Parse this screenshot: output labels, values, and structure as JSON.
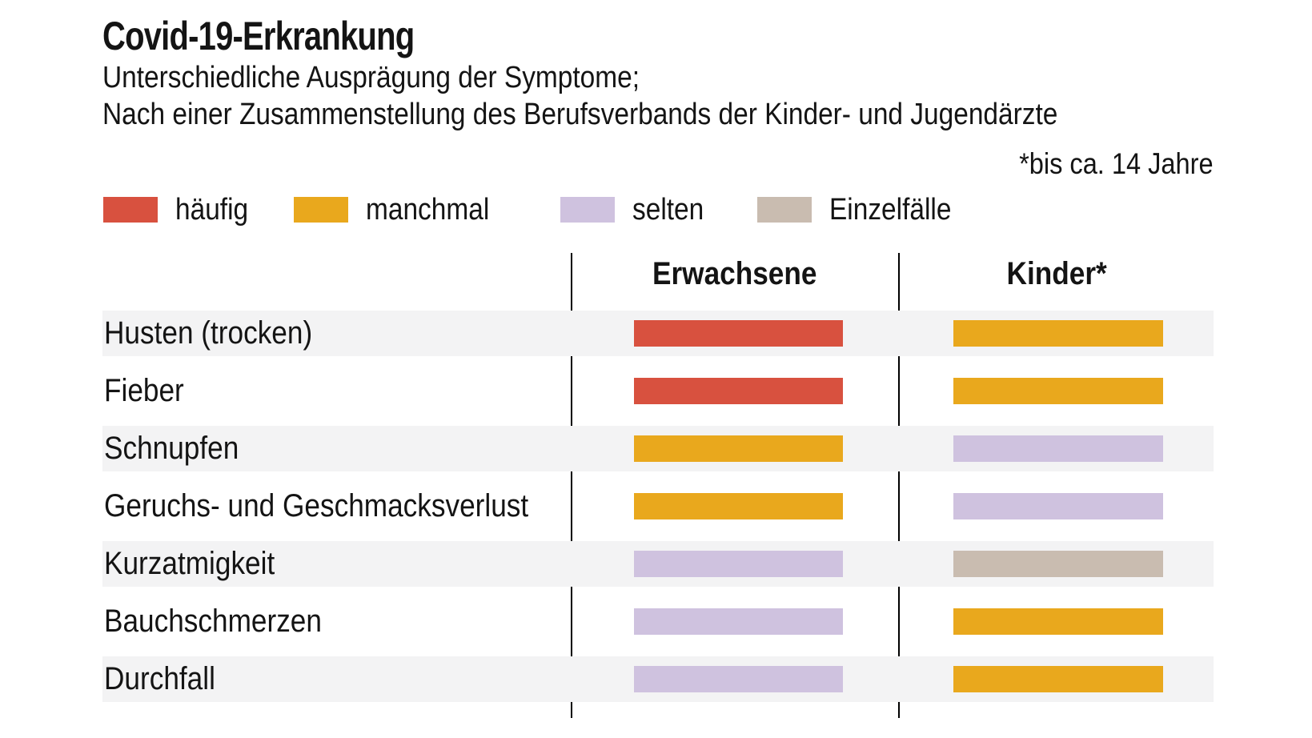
{
  "header": {
    "title": "Covid-19-Erkrankung",
    "subtitle_line1": "Unterschiedliche Ausprägung der Symptome;",
    "subtitle_line2": "Nach einer Zusammenstellung des Berufsverbands der Kinder- und Jugendärzte",
    "footnote": "*bis ca. 14 Jahre"
  },
  "legend": {
    "items": [
      {
        "label": "häufig",
        "color": "#d8513f"
      },
      {
        "label": "manchmal",
        "color": "#e9a81d"
      },
      {
        "label": "selten",
        "color": "#cfc2df"
      },
      {
        "label": "Einzelfälle",
        "color": "#c9bcb0"
      }
    ]
  },
  "table": {
    "columns": [
      "Erwachsene",
      "Kinder*"
    ],
    "rows": [
      {
        "label": "Husten (trocken)",
        "erwachsene": "häufig",
        "kinder": "manchmal"
      },
      {
        "label": "Fieber",
        "erwachsene": "häufig",
        "kinder": "manchmal"
      },
      {
        "label": "Schnupfen",
        "erwachsene": "manchmal",
        "kinder": "selten"
      },
      {
        "label": "Geruchs- und Geschmacksverlust",
        "erwachsene": "manchmal",
        "kinder": "selten"
      },
      {
        "label": "Kurzatmigkeit",
        "erwachsene": "selten",
        "kinder": "Einzelfälle"
      },
      {
        "label": "Bauchschmerzen",
        "erwachsene": "selten",
        "kinder": "manchmal"
      },
      {
        "label": "Durchfall",
        "erwachsene": "selten",
        "kinder": "manchmal"
      }
    ]
  },
  "chart_data": {
    "type": "heatmap",
    "title": "Covid-19-Erkrankung",
    "subtitle": "Unterschiedliche Ausprägung der Symptome; Nach einer Zusammenstellung des Berufsverbands der Kinder- und Jugendärzte",
    "footnote": "*bis ca. 14 Jahre",
    "categories": [
      "Husten (trocken)",
      "Fieber",
      "Schnupfen",
      "Geruchs- und Geschmacksverlust",
      "Kurzatmigkeit",
      "Bauchschmerzen",
      "Durchfall"
    ],
    "columns": [
      "Erwachsene",
      "Kinder*"
    ],
    "values": [
      [
        "häufig",
        "manchmal"
      ],
      [
        "häufig",
        "manchmal"
      ],
      [
        "manchmal",
        "selten"
      ],
      [
        "manchmal",
        "selten"
      ],
      [
        "selten",
        "Einzelfälle"
      ],
      [
        "selten",
        "manchmal"
      ],
      [
        "selten",
        "manchmal"
      ]
    ],
    "value_scale": [
      "häufig",
      "manchmal",
      "selten",
      "Einzelfälle"
    ],
    "value_colors": {
      "häufig": "#d8513f",
      "manchmal": "#e9a81d",
      "selten": "#cfc2df",
      "Einzelfälle": "#c9bcb0"
    },
    "legend_position": "top",
    "grid": false
  }
}
